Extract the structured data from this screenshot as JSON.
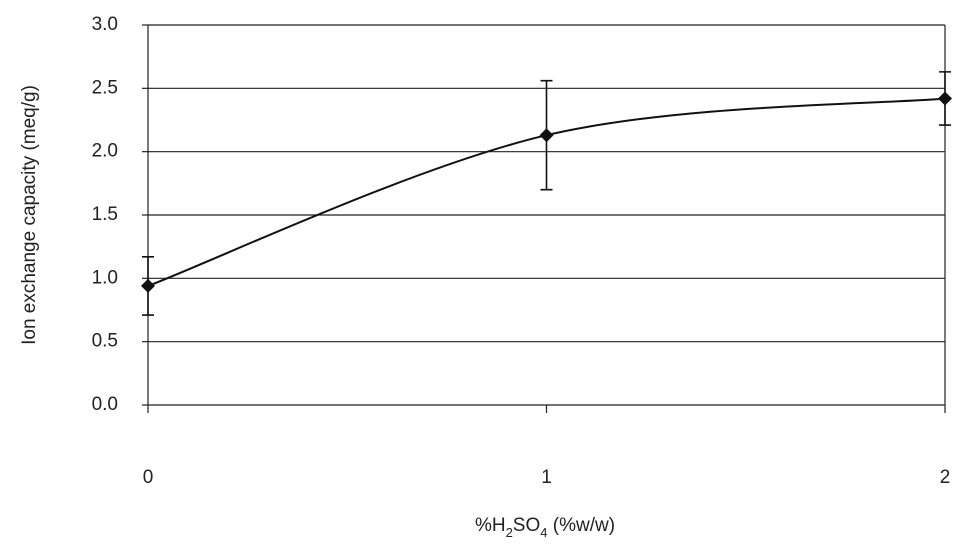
{
  "chart_data": {
    "type": "line",
    "x": [
      0,
      1,
      2
    ],
    "values": [
      0.94,
      2.13,
      2.42
    ],
    "errors": [
      0.23,
      0.43,
      0.21
    ],
    "color": "#111111",
    "xlim": [
      0,
      2
    ],
    "xticks": [
      0,
      1,
      2
    ],
    "ylim": [
      0,
      3
    ],
    "yticks": [
      {
        "value": 0,
        "label": "0.0"
      },
      0.5,
      {
        "value": 1,
        "label": "1.0"
      },
      1.5,
      {
        "value": 2,
        "label": "2.0"
      },
      2.5,
      {
        "value": 3,
        "label": "3.0"
      }
    ],
    "grid": true,
    "ylabel": "Ion exchange capacity (meq/g)",
    "xlabel": [
      "%H",
      "2",
      "SO",
      "4",
      " (%w/w)"
    ]
  }
}
